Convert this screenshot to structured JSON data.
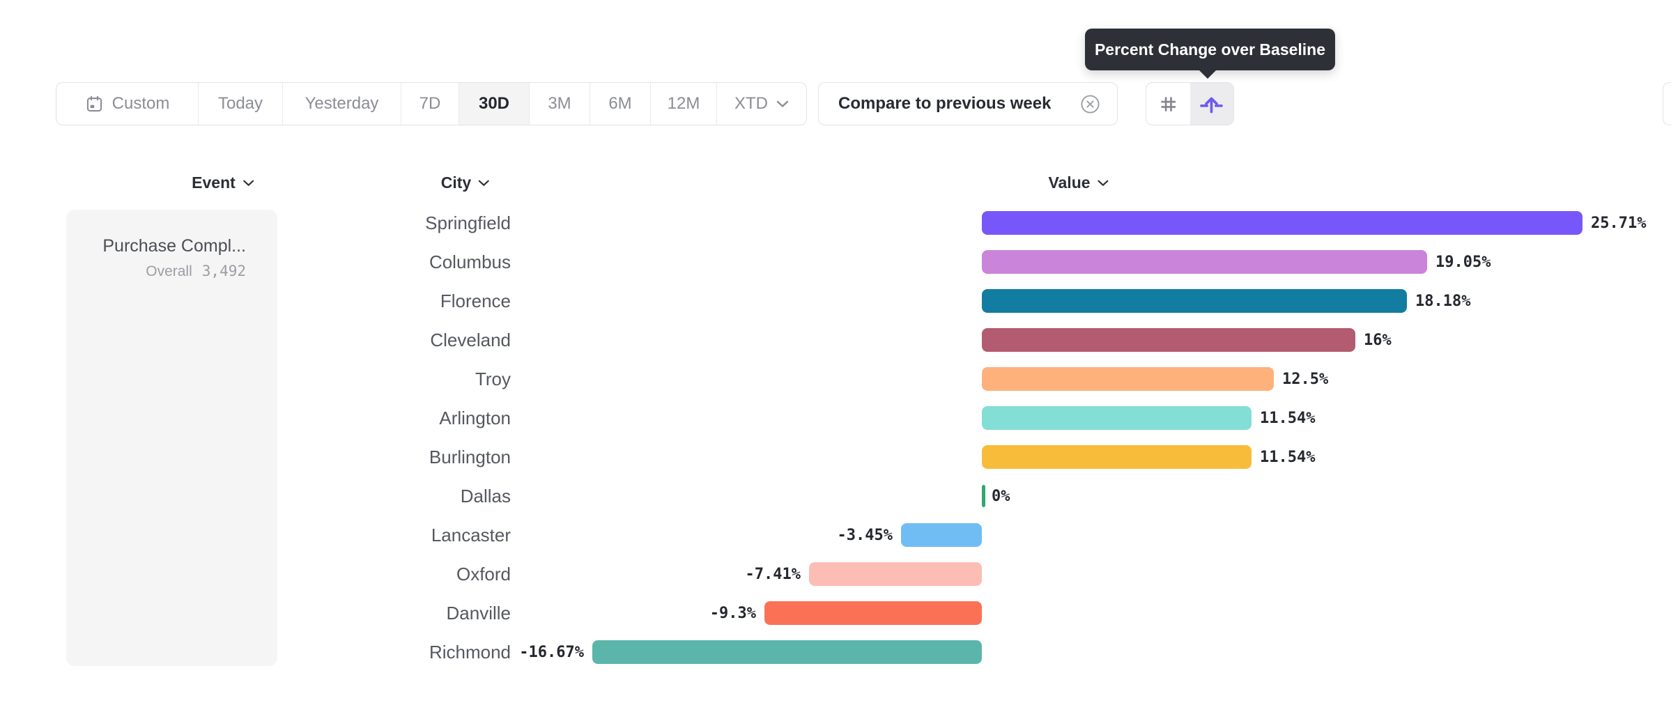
{
  "toolbar": {
    "date_ranges": [
      {
        "label": "Custom",
        "selected": false,
        "icon": "calendar-icon"
      },
      {
        "label": "Today",
        "selected": false
      },
      {
        "label": "Yesterday",
        "selected": false
      },
      {
        "label": "7D",
        "selected": false
      },
      {
        "label": "30D",
        "selected": true
      },
      {
        "label": "3M",
        "selected": false
      },
      {
        "label": "6M",
        "selected": false
      },
      {
        "label": "12M",
        "selected": false
      },
      {
        "label": "XTD",
        "selected": false,
        "icon": "chevron-down-icon"
      }
    ],
    "compare_label": "Compare to previous week",
    "compare_dismiss_icon": "circle-x-icon",
    "metric_toggle": {
      "options": [
        {
          "icon": "hash-icon",
          "selected": false
        },
        {
          "icon": "percent-change-icon",
          "selected": true
        }
      ],
      "accent_color": "#6f5aef"
    }
  },
  "tooltip": {
    "text": "Percent Change over Baseline",
    "background": "#2d3037"
  },
  "columns": [
    {
      "label": "Event",
      "icon": "chevron-down-icon"
    },
    {
      "label": "City",
      "icon": "chevron-down-icon"
    },
    {
      "label": "Value",
      "icon": "chevron-down-icon"
    }
  ],
  "event_panel": {
    "event_name": "Purchase Compl...",
    "overall_label": "Overall",
    "overall_value": "3,492"
  },
  "chart_data": {
    "type": "bar",
    "orientation": "horizontal",
    "title": "Percent Change over Baseline",
    "unit": "%",
    "baseline": 0,
    "xlim": [
      -16.67,
      25.71
    ],
    "grid": false,
    "legend": false,
    "categories": [
      "Springfield",
      "Columbus",
      "Florence",
      "Cleveland",
      "Troy",
      "Arlington",
      "Burlington",
      "Dallas",
      "Lancaster",
      "Oxford",
      "Danville",
      "Richmond"
    ],
    "values": [
      25.71,
      19.05,
      18.18,
      16,
      12.5,
      11.54,
      11.54,
      0,
      -3.45,
      -7.41,
      -9.3,
      -16.67
    ],
    "labels": [
      "25.71%",
      "19.05%",
      "18.18%",
      "16%",
      "12.5%",
      "11.54%",
      "11.54%",
      "0%",
      "-3.45%",
      "-7.41%",
      "-9.3%",
      "-16.67%"
    ],
    "colors": [
      "#7857fa",
      "#ca84da",
      "#137ca1",
      "#b35b70",
      "#ffb17b",
      "#83ded6",
      "#f8bc3b",
      "#2fa871",
      "#70bdf4",
      "#fcbdb5",
      "#fb7156",
      "#5bb5aa"
    ]
  }
}
